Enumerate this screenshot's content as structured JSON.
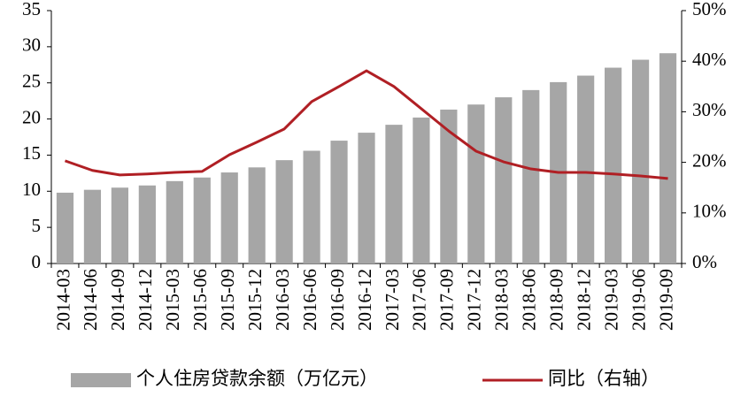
{
  "chart_data": {
    "type": "bar-line",
    "categories": [
      "2014-03",
      "2014-06",
      "2014-09",
      "2014-12",
      "2015-03",
      "2015-06",
      "2015-09",
      "2015-12",
      "2016-03",
      "2016-06",
      "2016-09",
      "2016-12",
      "2017-03",
      "2017-06",
      "2017-09",
      "2017-12",
      "2018-03",
      "2018-06",
      "2018-09",
      "2018-12",
      "2019-03",
      "2019-06",
      "2019-09"
    ],
    "series": [
      {
        "name": "个人住房贷款余额（万亿元）",
        "type": "bar",
        "color": "#a6a6a6",
        "values": [
          9.8,
          10.2,
          10.5,
          10.8,
          11.4,
          11.9,
          12.6,
          13.3,
          14.3,
          15.6,
          17.0,
          18.1,
          19.2,
          20.2,
          21.3,
          22.0,
          23.0,
          24.0,
          25.1,
          26.0,
          27.1,
          28.2,
          29.1
        ]
      },
      {
        "name": "同比（右轴）",
        "type": "line",
        "axis": "y2",
        "color": "#b01f24",
        "values": [
          20.3,
          18.4,
          17.5,
          17.7,
          18.0,
          18.2,
          21.5,
          24.0,
          26.6,
          32.0,
          35.0,
          38.1,
          35.0,
          30.6,
          26.2,
          22.2,
          20.1,
          18.7,
          18.0,
          18.0,
          17.7,
          17.3,
          16.8
        ]
      }
    ],
    "ylim": [
      0,
      35
    ],
    "yticks": [
      0,
      5,
      10,
      15,
      20,
      25,
      30,
      35
    ],
    "y2lim": [
      0,
      50
    ],
    "y2ticks": [
      {
        "value": 0,
        "label": "0%"
      },
      {
        "value": 10,
        "label": "10%"
      },
      {
        "value": 20,
        "label": "20%"
      },
      {
        "value": 30,
        "label": "30%"
      },
      {
        "value": 40,
        "label": "40%"
      },
      {
        "value": 50,
        "label": "50%"
      }
    ],
    "legend": "bottom"
  }
}
